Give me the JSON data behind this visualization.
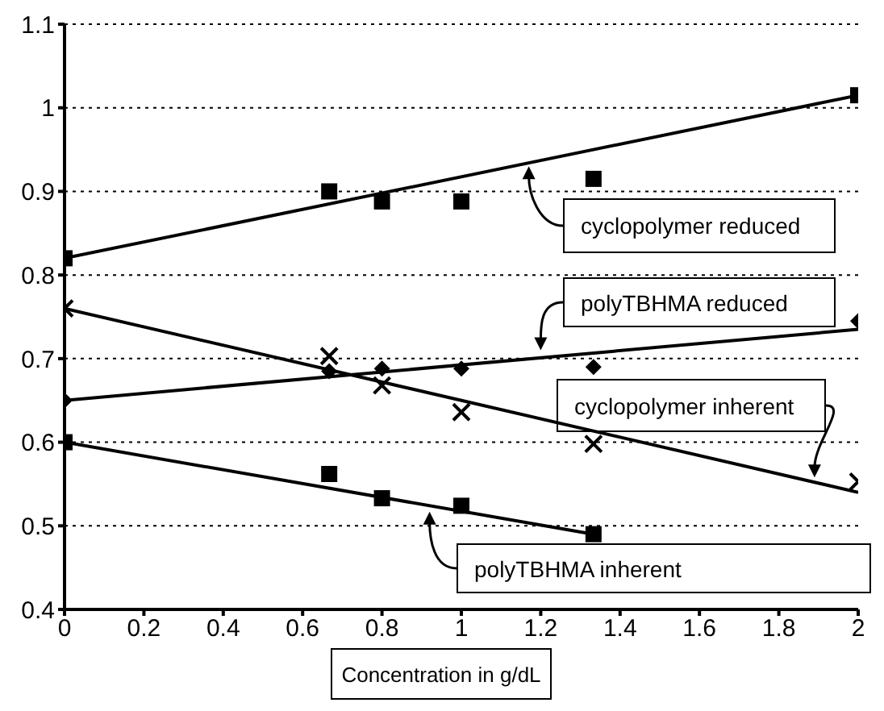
{
  "chart_data": {
    "type": "scatter",
    "xlabel": "Concentration in g/dL",
    "xlim": [
      0,
      2
    ],
    "xticks": [
      0,
      0.2,
      0.4,
      0.6,
      0.8,
      1,
      1.2,
      1.4,
      1.6,
      1.8,
      2
    ],
    "ylim": [
      0.4,
      1.1
    ],
    "yticks": [
      0.4,
      0.5,
      0.6,
      0.7,
      0.8,
      0.9,
      1,
      1.1
    ],
    "grid": "y",
    "line_style": "solid",
    "series": [
      {
        "marker": "square",
        "color": "#000000",
        "x": [
          0,
          0.667,
          0.8,
          1,
          1.333,
          2
        ],
        "values": [
          0.82,
          0.9,
          0.888,
          0.888,
          0.915,
          1.015
        ]
      },
      {
        "marker": "diamond",
        "color": "#000000",
        "x": [
          0,
          0.667,
          0.8,
          1,
          1.333,
          2
        ],
        "values": [
          0.65,
          0.685,
          0.688,
          0.688,
          0.69,
          0.745
        ]
      },
      {
        "marker": "cross",
        "color": "#000000",
        "x": [
          0,
          0.667,
          0.8,
          1,
          1.333,
          2
        ],
        "values": [
          0.76,
          0.703,
          0.668,
          0.636,
          0.598,
          0.553
        ]
      },
      {
        "marker": "square",
        "color": "#000000",
        "x": [
          0,
          0.667,
          0.8,
          1,
          1.333
        ],
        "values": [
          0.6,
          0.562,
          0.533,
          0.524,
          0.49
        ]
      },
      {
        "type": "line",
        "marker": "none",
        "color": "#000000",
        "x": [
          0,
          2
        ],
        "values": [
          0.82,
          1.015
        ]
      },
      {
        "type": "line",
        "marker": "none",
        "color": "#000000",
        "x": [
          0,
          2
        ],
        "values": [
          0.65,
          0.735
        ]
      },
      {
        "type": "line",
        "marker": "none",
        "color": "#000000",
        "x": [
          0,
          2
        ],
        "values": [
          0.76,
          0.54
        ]
      },
      {
        "type": "line",
        "marker": "none",
        "color": "#000000",
        "x": [
          0,
          1.333
        ],
        "values": [
          0.6,
          0.49
        ]
      }
    ],
    "annotations": [
      {
        "text": "cyclopolymer reduced",
        "x": 1.17,
        "y": 0.93
      },
      {
        "text": "polyTBHMA reduced",
        "x": 1.2,
        "y": 0.71
      },
      {
        "text": "cyclopolymer inherent",
        "x": 1.89,
        "y": 0.558
      },
      {
        "text": "polyTBHMA inherent",
        "x": 0.92,
        "y": 0.517
      }
    ]
  }
}
